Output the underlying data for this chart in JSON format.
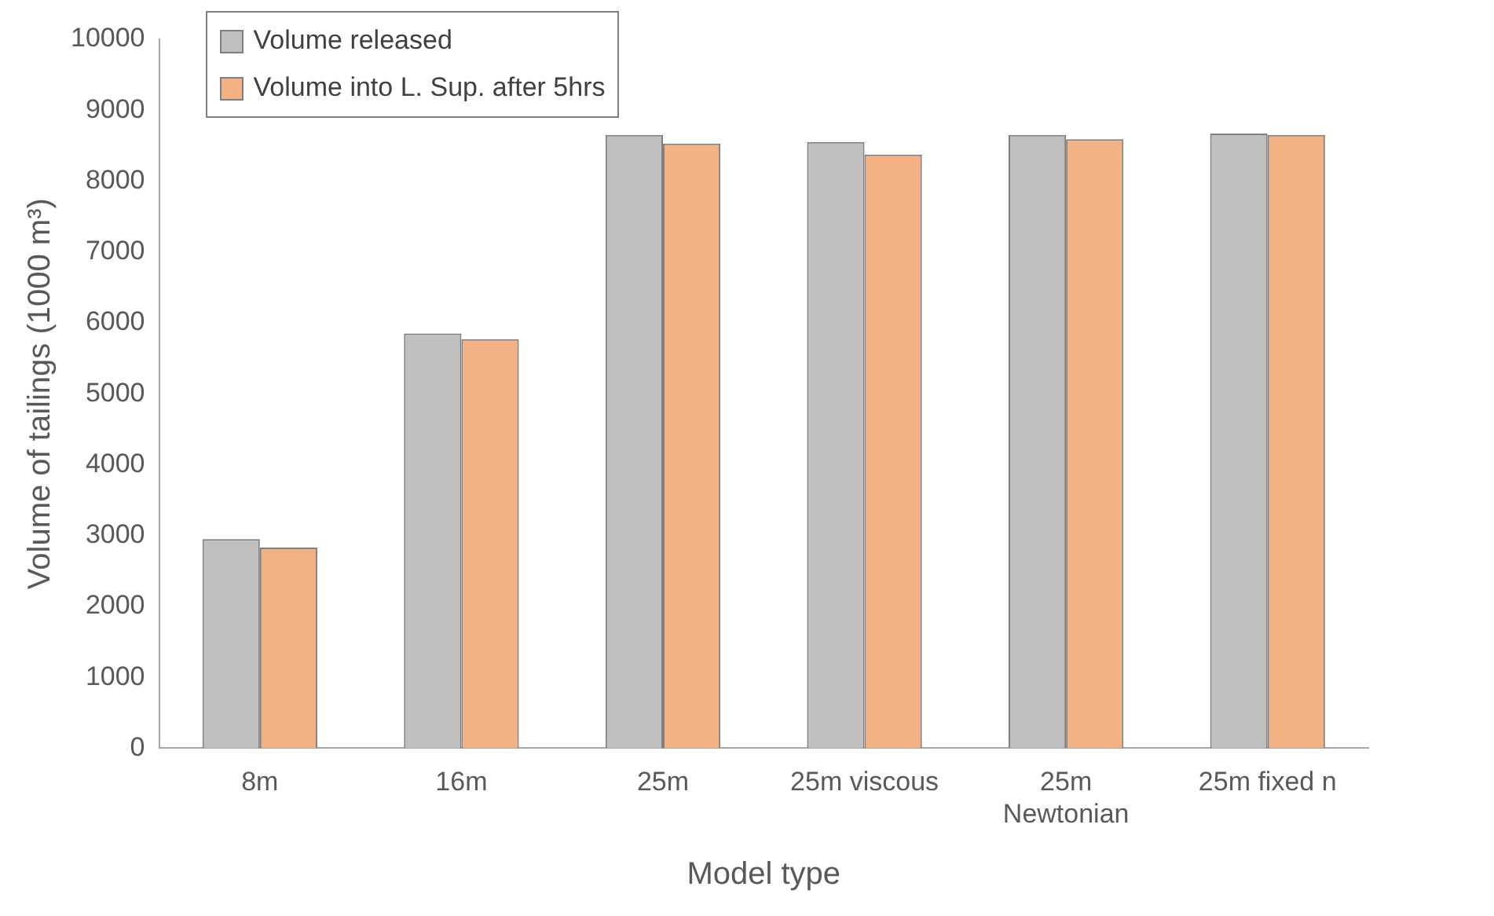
{
  "chart_data": {
    "type": "bar",
    "xlabel": "Model type",
    "ylabel": "Volume of tailings (1000 m³)",
    "categories": [
      "8m",
      "16m",
      "25m",
      "25m viscous",
      "25m Newtonian",
      "25m fixed n"
    ],
    "series": [
      {
        "name": "Volume released",
        "color": "#bfbfbf",
        "values": [
          2950,
          5850,
          8650,
          8550,
          8650,
          8670
        ]
      },
      {
        "name": "Volume into L. Sup. after 5hrs",
        "color": "#f4b183",
        "values": [
          2830,
          5770,
          8530,
          8375,
          8590,
          8650
        ]
      }
    ],
    "ylim": [
      0,
      10000
    ],
    "yticks": [
      0,
      1000,
      2000,
      3000,
      4000,
      5000,
      6000,
      7000,
      8000,
      9000,
      10000
    ],
    "grid": false,
    "legend": "top left"
  }
}
